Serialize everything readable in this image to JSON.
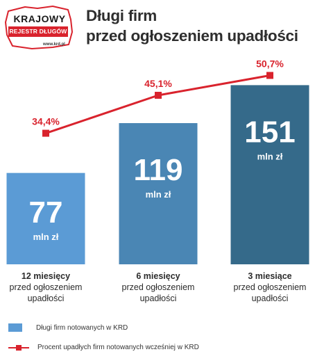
{
  "logo": {
    "top_text": "KRAJOWY",
    "bar_text": "REJESTR DŁUGÓW",
    "url": "www.krd.pl"
  },
  "title_line1": "Długi firm",
  "title_line2": "przed ogłoszeniem upadłości",
  "legend": {
    "bars": "Długi firm notowanych w KRD",
    "line": "Procent upadłych firm notowanych wcześniej w KRD"
  },
  "chart_data": {
    "type": "bar",
    "categories": [
      "12 miesięcy przed ogłoszeniem upadłości",
      "6 miesięcy przed ogłoszeniem upadłości",
      "3 miesiące przed ogłoszeniem upadłości"
    ],
    "category_labels": [
      {
        "strong": "12 miesięcy",
        "line2": "przed ogłoszeniem",
        "line3": "upadłości"
      },
      {
        "strong": "6 miesięcy",
        "line2": "przed ogłoszeniem",
        "line3": "upadłości"
      },
      {
        "strong": "3 miesiące",
        "line2": "przed ogłoszeniem",
        "line3": "upadłości"
      }
    ],
    "series": [
      {
        "name": "Długi firm notowanych w KRD",
        "type": "bar",
        "unit": "mln zł",
        "values": [
          77,
          119,
          151
        ],
        "labels": [
          "77",
          "119",
          "151"
        ],
        "colors": [
          "#5b9bd5",
          "#4a86b4",
          "#356a8a"
        ]
      },
      {
        "name": "Procent upadłych firm notowanych wcześniej w KRD",
        "type": "line",
        "values": [
          34.4,
          45.1,
          50.7
        ],
        "labels": [
          "34,4%",
          "45,1%",
          "50,7%"
        ],
        "color": "#d9232d"
      }
    ],
    "bar_ylim": [
      0,
      170
    ],
    "line_ylim": [
      0,
      60
    ],
    "title": "Długi firm przed ogłoszeniem upadłości"
  }
}
